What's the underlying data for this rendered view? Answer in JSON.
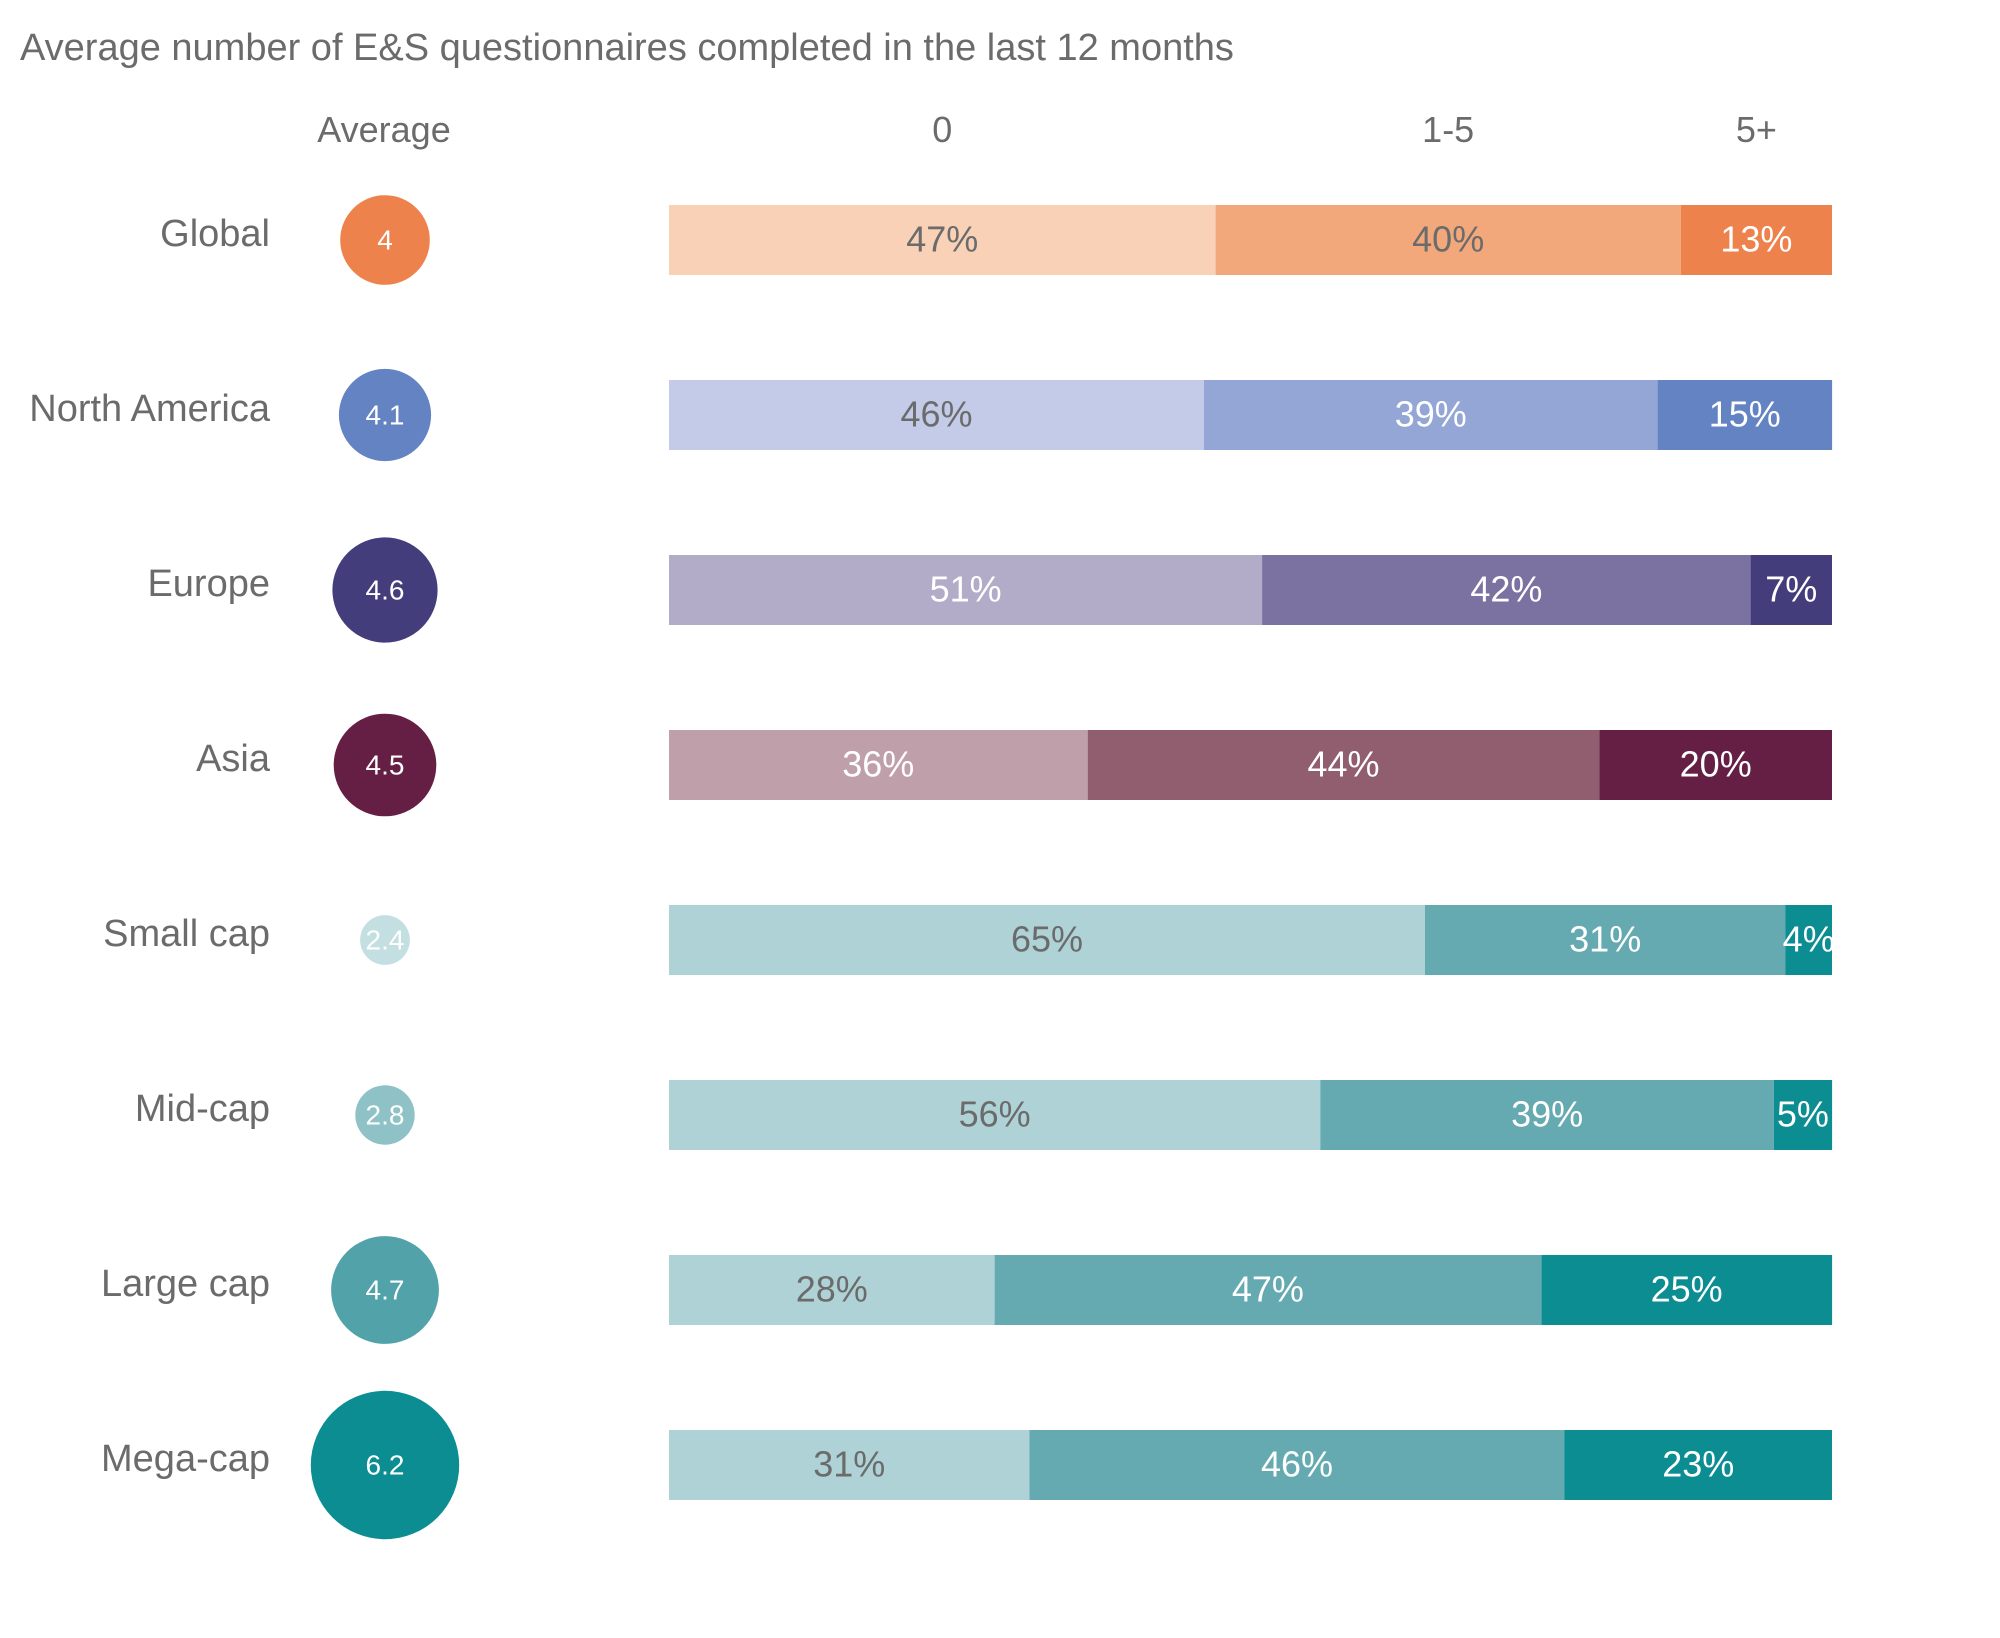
{
  "chart_data": {
    "type": "bar",
    "title": "Average number of E&S questionnaires completed in the last 12 months",
    "average_header": "Average",
    "segments": [
      "0",
      "1-5",
      "5+"
    ],
    "rows": [
      {
        "label": "Global",
        "average": 4,
        "average_label": "4",
        "values": [
          47,
          40,
          13
        ],
        "value_labels": [
          "47%",
          "40%",
          "13%"
        ],
        "colors": [
          "#f8d1b6",
          "#f3a87c",
          "#ee824c"
        ],
        "circle_color": "#ee824c"
      },
      {
        "label": "North America",
        "average": 4.1,
        "average_label": "4.1",
        "values": [
          46,
          39,
          15
        ],
        "value_labels": [
          "46%",
          "39%",
          "15%"
        ],
        "colors": [
          "#c3cbe8",
          "#94a6d5",
          "#6483c3"
        ],
        "circle_color": "#6483c3"
      },
      {
        "label": "Europe",
        "average": 4.6,
        "average_label": "4.6",
        "values": [
          51,
          42,
          7
        ],
        "value_labels": [
          "51%",
          "42%",
          "7%"
        ],
        "colors": [
          "#b2acc8",
          "#7b72a2",
          "#433d7c"
        ],
        "circle_color": "#433d7c"
      },
      {
        "label": "Asia",
        "average": 4.5,
        "average_label": "4.5",
        "values": [
          36,
          44,
          20
        ],
        "value_labels": [
          "36%",
          "44%",
          "20%"
        ],
        "colors": [
          "#bfa0aa",
          "#905e6f",
          "#651f45"
        ],
        "circle_color": "#651f45"
      },
      {
        "label": "Small cap",
        "average": 2.4,
        "average_label": "2.4",
        "values": [
          65,
          31,
          4
        ],
        "value_labels": [
          "65%",
          "31%",
          "4%"
        ],
        "colors": [
          "#afd2d7",
          "#65aab1",
          "#0b8d92"
        ],
        "circle_color": "#c4dfe2"
      },
      {
        "label": "Mid-cap",
        "average": 2.8,
        "average_label": "2.8",
        "values": [
          56,
          39,
          5
        ],
        "value_labels": [
          "56%",
          "39%",
          "5%"
        ],
        "colors": [
          "#afd2d7",
          "#65aab1",
          "#0b8d92"
        ],
        "circle_color": "#8ec2c7"
      },
      {
        "label": "Large cap",
        "average": 4.7,
        "average_label": "4.7",
        "values": [
          28,
          47,
          25
        ],
        "value_labels": [
          "28%",
          "47%",
          "25%"
        ],
        "colors": [
          "#afd2d7",
          "#65aab1",
          "#0b8d92"
        ],
        "circle_color": "#52a2aa"
      },
      {
        "label": "Mega-cap",
        "average": 6.2,
        "average_label": "6.2",
        "values": [
          31,
          46,
          23
        ],
        "value_labels": [
          "31%",
          "46%",
          "23%"
        ],
        "colors": [
          "#afd2d7",
          "#65aab1",
          "#0b8d92"
        ],
        "circle_color": "#0b8d92"
      }
    ],
    "xlim": [
      0,
      100
    ],
    "grid": false,
    "legend": "none"
  }
}
